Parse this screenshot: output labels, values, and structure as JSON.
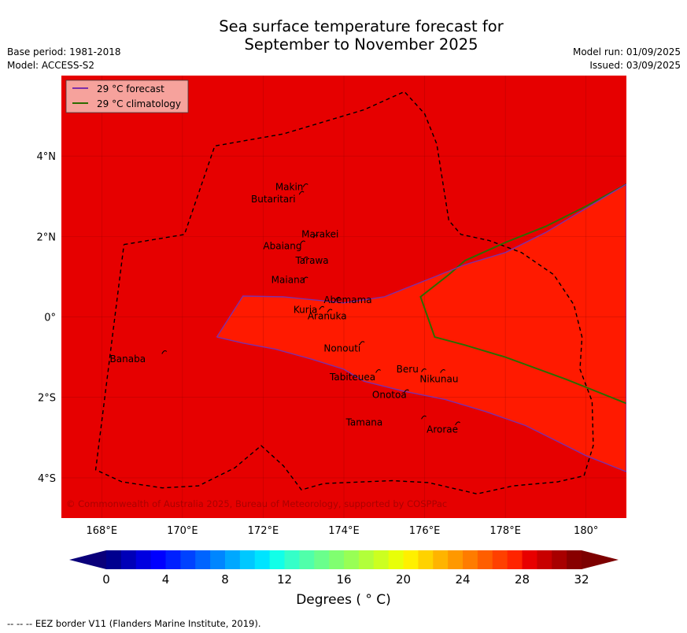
{
  "header": {
    "title_line1": "Sea surface temperature forecast for",
    "title_line2": "September to November 2025",
    "base_period": "Base period: 1981-2018",
    "model": "Model: ACCESS-S2",
    "model_run": "Model run: 01/09/2025",
    "issued": "Issued: 03/09/2025"
  },
  "map": {
    "lon_range": [
      167,
      181
    ],
    "lat_range": [
      -5,
      6
    ],
    "grid": true,
    "lon_ticks": [
      {
        "value": 168,
        "label": "168°E"
      },
      {
        "value": 170,
        "label": "170°E"
      },
      {
        "value": 172,
        "label": "172°E"
      },
      {
        "value": 174,
        "label": "174°E"
      },
      {
        "value": 176,
        "label": "176°E"
      },
      {
        "value": 178,
        "label": "178°E"
      },
      {
        "value": 180,
        "label": "180°"
      }
    ],
    "lat_ticks": [
      {
        "value": 4,
        "label": "4°N"
      },
      {
        "value": 2,
        "label": "2°N"
      },
      {
        "value": 0,
        "label": "0°"
      },
      {
        "value": -2,
        "label": "2°S"
      },
      {
        "value": -4,
        "label": "4°S"
      }
    ],
    "background_color": "#e60000",
    "warm_region_color": "#ff1a00",
    "legend": {
      "placement": "top-left",
      "items": [
        {
          "label": "29 °C  forecast",
          "color": "#7d2fa8"
        },
        {
          "label": "29 °C  climatology",
          "color": "#2d6b00"
        }
      ]
    },
    "forecast_29c_contour": [
      [
        170.85,
        -0.5
      ],
      [
        171.5,
        0.52
      ],
      [
        172.5,
        0.5
      ],
      [
        174,
        0.35
      ],
      [
        175,
        0.5
      ],
      [
        176,
        0.9
      ],
      [
        177,
        1.3
      ],
      [
        178,
        1.6
      ],
      [
        179,
        2.1
      ],
      [
        180,
        2.7
      ],
      [
        181,
        3.3
      ],
      [
        181,
        -3.85
      ],
      [
        180,
        -3.45
      ],
      [
        179.5,
        -3.2
      ],
      [
        178.5,
        -2.7
      ],
      [
        177.5,
        -2.35
      ],
      [
        176.5,
        -2.05
      ],
      [
        175.5,
        -1.85
      ],
      [
        174.5,
        -1.6
      ],
      [
        174,
        -1.3
      ],
      [
        173.2,
        -1.05
      ],
      [
        172.3,
        -0.8
      ],
      [
        171.5,
        -0.65
      ],
      [
        170.85,
        -0.5
      ]
    ],
    "climatology_29c_contour": [
      [
        181,
        3.3
      ],
      [
        180,
        2.75
      ],
      [
        179,
        2.25
      ],
      [
        178,
        1.85
      ],
      [
        177,
        1.4
      ],
      [
        176.6,
        1.05
      ],
      [
        175.9,
        0.5
      ],
      [
        176.25,
        -0.5
      ],
      [
        177,
        -0.7
      ],
      [
        178,
        -1
      ],
      [
        179.5,
        -1.55
      ],
      [
        181,
        -2.15
      ]
    ],
    "eez_border": [
      [
        168.55,
        1.8
      ],
      [
        170.05,
        2.05
      ],
      [
        170.8,
        4.25
      ],
      [
        172.5,
        4.55
      ],
      [
        174.5,
        5.15
      ],
      [
        175.5,
        5.6
      ],
      [
        176,
        5.05
      ],
      [
        176.3,
        4.3
      ],
      [
        176.6,
        2.4
      ],
      [
        176.9,
        2.05
      ],
      [
        177.6,
        1.9
      ],
      [
        178.4,
        1.6
      ],
      [
        179.2,
        1.05
      ],
      [
        179.7,
        0.3
      ],
      [
        179.9,
        -0.5
      ],
      [
        179.85,
        -1.3
      ],
      [
        180.15,
        -2.1
      ],
      [
        180.18,
        -3.2
      ],
      [
        179.95,
        -3.95
      ],
      [
        179.3,
        -4.1
      ],
      [
        178.2,
        -4.2
      ],
      [
        177.3,
        -4.4
      ],
      [
        176.1,
        -4.12
      ],
      [
        175.2,
        -4.07
      ],
      [
        173.5,
        -4.14
      ],
      [
        172.95,
        -4.3
      ],
      [
        172.5,
        -3.7
      ],
      [
        171.95,
        -3.2
      ],
      [
        171.3,
        -3.75
      ],
      [
        170.4,
        -4.2
      ],
      [
        169.5,
        -4.25
      ],
      [
        168.5,
        -4.1
      ],
      [
        167.85,
        -3.8
      ],
      [
        168.55,
        1.8
      ]
    ],
    "islands": [
      {
        "name": "Makin",
        "lon": 173.05,
        "lat": 3.27
      },
      {
        "name": "Butaritari",
        "lon": 172.95,
        "lat": 3.08
      },
      {
        "name": "Marakei",
        "lon": 173.3,
        "lat": 2.0
      },
      {
        "name": "Abaiang",
        "lon": 172.98,
        "lat": 1.85
      },
      {
        "name": "Tarawa",
        "lon": 173.05,
        "lat": 1.45
      },
      {
        "name": "Maiana",
        "lon": 173.05,
        "lat": 0.95
      },
      {
        "name": "Abemama",
        "lon": 173.85,
        "lat": 0.45
      },
      {
        "name": "Kuria",
        "lon": 173.45,
        "lat": 0.22
      },
      {
        "name": "Aranuka",
        "lon": 173.65,
        "lat": 0.15
      },
      {
        "name": "Nonouti",
        "lon": 174.45,
        "lat": -0.65
      },
      {
        "name": "Banaba",
        "lon": 169.55,
        "lat": -0.88
      },
      {
        "name": "Tabiteuea",
        "lon": 174.85,
        "lat": -1.35
      },
      {
        "name": "Beru",
        "lon": 175.98,
        "lat": -1.33
      },
      {
        "name": "Nikunau",
        "lon": 176.45,
        "lat": -1.35
      },
      {
        "name": "Onotoa",
        "lon": 175.55,
        "lat": -1.85
      },
      {
        "name": "Tamana",
        "lon": 175.98,
        "lat": -2.5
      },
      {
        "name": "Arorae",
        "lon": 176.82,
        "lat": -2.65
      }
    ],
    "island_labels": [
      {
        "text": "Makin",
        "lon": 172.3,
        "lat": 3.15
      },
      {
        "text": "Butaritari",
        "lon": 171.7,
        "lat": 2.85
      },
      {
        "text": "Marakei",
        "lon": 172.95,
        "lat": 1.98
      },
      {
        "text": "Abaiang",
        "lon": 172.0,
        "lat": 1.68
      },
      {
        "text": "Tarawa",
        "lon": 172.8,
        "lat": 1.32
      },
      {
        "text": "Maiana",
        "lon": 172.2,
        "lat": 0.84
      },
      {
        "text": "Abemama",
        "lon": 173.5,
        "lat": 0.34
      },
      {
        "text": "Kuria",
        "lon": 172.75,
        "lat": 0.1
      },
      {
        "text": "Aranuka",
        "lon": 173.1,
        "lat": -0.06
      },
      {
        "text": "Nonouti",
        "lon": 173.5,
        "lat": -0.86
      },
      {
        "text": "Banaba",
        "lon": 168.2,
        "lat": -1.12
      },
      {
        "text": "Tabiteuea",
        "lon": 173.65,
        "lat": -1.57
      },
      {
        "text": "Beru",
        "lon": 175.3,
        "lat": -1.38
      },
      {
        "text": "Nikunau",
        "lon": 175.88,
        "lat": -1.62
      },
      {
        "text": "Onotoa",
        "lon": 174.7,
        "lat": -2.02
      },
      {
        "text": "Tamana",
        "lon": 174.05,
        "lat": -2.7
      },
      {
        "text": "Arorae",
        "lon": 176.05,
        "lat": -2.88
      }
    ],
    "copyright": "© Commonwealth of Australia 2025, Bureau of Meteorology, supported by COSPPac"
  },
  "colorbar": {
    "min": 0,
    "max": 32,
    "step": 1,
    "tick_labels": [
      "0",
      "4",
      "8",
      "12",
      "16",
      "20",
      "24",
      "28",
      "32"
    ],
    "label": "Degrees ( ° C)",
    "under_color": "#0a007a",
    "over_color": "#7d0000",
    "colors": [
      "#00008f",
      "#0000b8",
      "#0000e0",
      "#0000ff",
      "#0020ff",
      "#0042ff",
      "#0064ff",
      "#0086ff",
      "#00a8ff",
      "#00c8ff",
      "#00e4ff",
      "#12ffe8",
      "#35ffc8",
      "#50ffaa",
      "#6aff8c",
      "#80ff70",
      "#98ff55",
      "#b2ff3a",
      "#ccff20",
      "#e8ff08",
      "#fff000",
      "#ffd200",
      "#ffb400",
      "#ff9800",
      "#ff7c00",
      "#ff5e00",
      "#ff4000",
      "#ff2400",
      "#e80000",
      "#c80000",
      "#a80000",
      "#880000"
    ]
  },
  "footer": {
    "eez_note": "--  --  -- EEZ border V11 (Flanders Marine Institute, 2019)."
  }
}
